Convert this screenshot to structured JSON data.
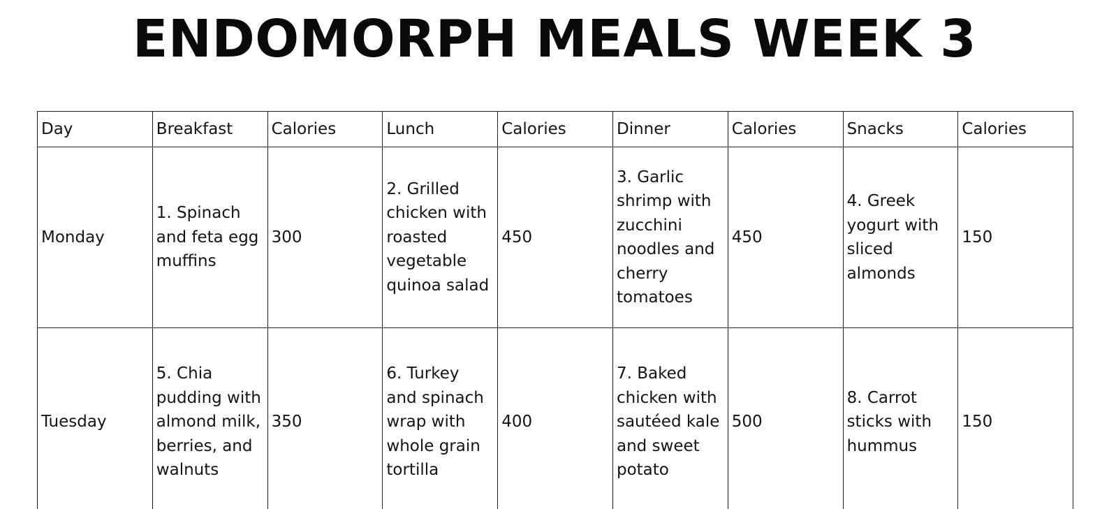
{
  "title": "ENDOMORPH MEALS WEEK 3",
  "table": {
    "headers": [
      "Day",
      "Breakfast",
      "Calories",
      "Lunch",
      "Calories",
      "Dinner",
      "Calories",
      "Snacks",
      "Calories"
    ],
    "rows": [
      {
        "day": "Monday",
        "breakfast": "1. Spinach and feta egg muffins",
        "breakfast_calories": "300",
        "lunch": "2. Grilled chicken with roasted vegetable quinoa salad",
        "lunch_calories": "450",
        "dinner": "3. Garlic shrimp with zucchini noodles and cherry tomatoes",
        "dinner_calories": "450",
        "snacks": "4. Greek yogurt with sliced almonds",
        "snacks_calories": "150"
      },
      {
        "day": "Tuesday",
        "breakfast": "5. Chia pudding with almond milk, berries, and walnuts",
        "breakfast_calories": "350",
        "lunch": "6. Turkey and spinach wrap with whole grain tortilla",
        "lunch_calories": "400",
        "dinner": "7. Baked chicken with sautéed kale and sweet potato",
        "dinner_calories": "500",
        "snacks": "8. Carrot sticks with hummus",
        "snacks_calories": "150"
      }
    ]
  }
}
